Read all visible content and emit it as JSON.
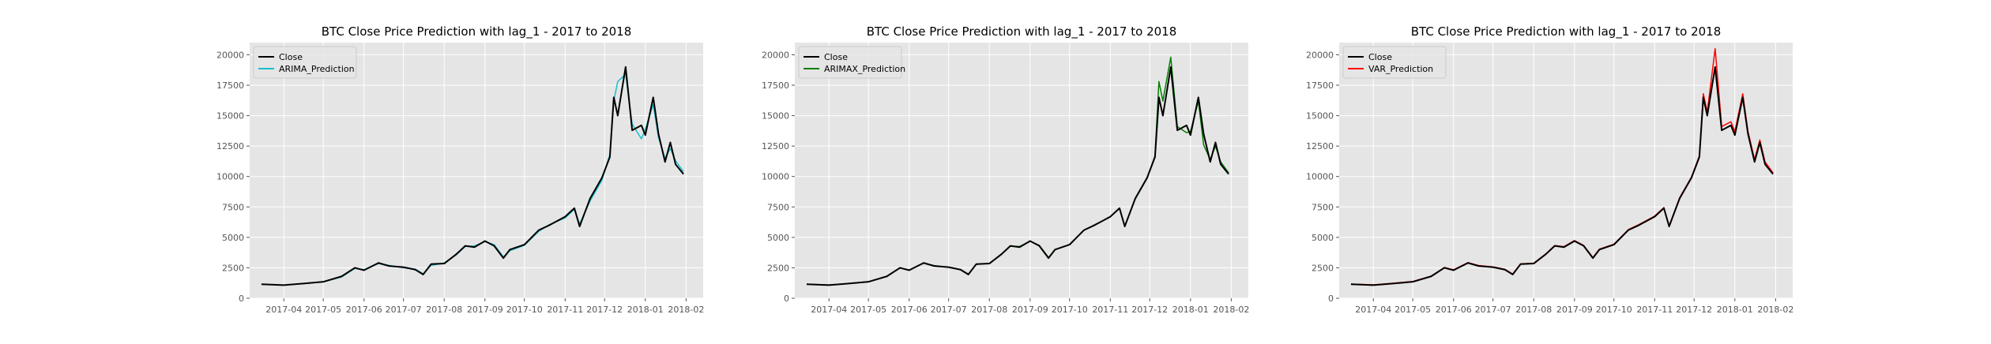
{
  "chart_data": [
    {
      "type": "line",
      "title": "BTC Close Price Prediction with lag_1 - 2017 to 2018",
      "xlabel": "",
      "ylabel": "",
      "xlim": [
        "2017-03-06",
        "2018-02-14"
      ],
      "ylim": [
        0,
        21000
      ],
      "yticks": [
        0,
        2500,
        5000,
        7500,
        10000,
        12500,
        15000,
        17500,
        20000
      ],
      "ytick_labels": [
        "0",
        "2500",
        "5000",
        "7500",
        "10000",
        "12500",
        "15000",
        "17500",
        "20000"
      ],
      "xticks": [
        "2017-04-01",
        "2017-05-01",
        "2017-06-01",
        "2017-07-01",
        "2017-08-01",
        "2017-09-01",
        "2017-10-01",
        "2017-11-01",
        "2017-12-01",
        "2018-01-01",
        "2018-02-01"
      ],
      "xtick_labels": [
        "2017-04",
        "2017-05",
        "2017-06",
        "2017-07",
        "2017-08",
        "2017-09",
        "2017-10",
        "2017-11",
        "2017-12",
        "2018-01",
        "2018-02"
      ],
      "grid": true,
      "legend_position": "top-left",
      "x": [
        "2017-03-15",
        "2017-04-01",
        "2017-04-15",
        "2017-05-01",
        "2017-05-15",
        "2017-05-25",
        "2017-06-01",
        "2017-06-12",
        "2017-06-20",
        "2017-07-01",
        "2017-07-10",
        "2017-07-16",
        "2017-07-22",
        "2017-08-01",
        "2017-08-10",
        "2017-08-17",
        "2017-08-24",
        "2017-09-01",
        "2017-09-08",
        "2017-09-15",
        "2017-09-20",
        "2017-10-01",
        "2017-10-12",
        "2017-10-20",
        "2017-11-01",
        "2017-11-08",
        "2017-11-12",
        "2017-11-20",
        "2017-11-29",
        "2017-12-05",
        "2017-12-08",
        "2017-12-11",
        "2017-12-17",
        "2017-12-22",
        "2017-12-29",
        "2018-01-01",
        "2018-01-07",
        "2018-01-11",
        "2018-01-16",
        "2018-01-20",
        "2018-01-24",
        "2018-01-30"
      ],
      "series": [
        {
          "name": "Close",
          "color": "#000000",
          "values": [
            1150,
            1080,
            1200,
            1350,
            1800,
            2500,
            2300,
            2900,
            2650,
            2550,
            2350,
            1950,
            2800,
            2850,
            3600,
            4300,
            4200,
            4700,
            4300,
            3300,
            4000,
            4400,
            5600,
            6000,
            6700,
            7400,
            5900,
            8200,
            9900,
            11600,
            16500,
            15000,
            19000,
            13800,
            14200,
            13400,
            16500,
            13500,
            11200,
            12800,
            11000,
            10200
          ]
        },
        {
          "name": "ARIMA_Prediction",
          "color": "#17becf",
          "values": [
            1140,
            1070,
            1190,
            1340,
            1750,
            2450,
            2350,
            2850,
            2700,
            2500,
            2400,
            2000,
            2700,
            2900,
            3550,
            4250,
            4300,
            4650,
            4400,
            3400,
            3900,
            4350,
            5500,
            6050,
            6600,
            7300,
            6100,
            8000,
            9700,
            11800,
            16200,
            17800,
            18400,
            14300,
            13100,
            13900,
            15900,
            13200,
            11500,
            12300,
            11300,
            10400
          ]
        }
      ]
    },
    {
      "type": "line",
      "title": "BTC Close Price Prediction with lag_1 - 2017 to 2018",
      "xlabel": "",
      "ylabel": "",
      "xlim": [
        "2017-03-06",
        "2018-02-14"
      ],
      "ylim": [
        0,
        21000
      ],
      "yticks": [
        0,
        2500,
        5000,
        7500,
        10000,
        12500,
        15000,
        17500,
        20000
      ],
      "ytick_labels": [
        "0",
        "2500",
        "5000",
        "7500",
        "10000",
        "12500",
        "15000",
        "17500",
        "20000"
      ],
      "xticks": [
        "2017-04-01",
        "2017-05-01",
        "2017-06-01",
        "2017-07-01",
        "2017-08-01",
        "2017-09-01",
        "2017-10-01",
        "2017-11-01",
        "2017-12-01",
        "2018-01-01",
        "2018-02-01"
      ],
      "xtick_labels": [
        "2017-04",
        "2017-05",
        "2017-06",
        "2017-07",
        "2017-08",
        "2017-09",
        "2017-10",
        "2017-11",
        "2017-12",
        "2018-01",
        "2018-02"
      ],
      "grid": true,
      "legend_position": "top-left",
      "x": [
        "2017-03-15",
        "2017-04-01",
        "2017-04-15",
        "2017-05-01",
        "2017-05-15",
        "2017-05-25",
        "2017-06-01",
        "2017-06-12",
        "2017-06-20",
        "2017-07-01",
        "2017-07-10",
        "2017-07-16",
        "2017-07-22",
        "2017-08-01",
        "2017-08-10",
        "2017-08-17",
        "2017-08-24",
        "2017-09-01",
        "2017-09-08",
        "2017-09-15",
        "2017-09-20",
        "2017-10-01",
        "2017-10-12",
        "2017-10-20",
        "2017-11-01",
        "2017-11-08",
        "2017-11-12",
        "2017-11-20",
        "2017-11-29",
        "2017-12-05",
        "2017-12-08",
        "2017-12-11",
        "2017-12-17",
        "2017-12-22",
        "2017-12-29",
        "2018-01-01",
        "2018-01-07",
        "2018-01-11",
        "2018-01-16",
        "2018-01-20",
        "2018-01-24",
        "2018-01-30"
      ],
      "series": [
        {
          "name": "Close",
          "color": "#000000",
          "values": [
            1150,
            1080,
            1200,
            1350,
            1800,
            2500,
            2300,
            2900,
            2650,
            2550,
            2350,
            1950,
            2800,
            2850,
            3600,
            4300,
            4200,
            4700,
            4300,
            3300,
            4000,
            4400,
            5600,
            6000,
            6700,
            7400,
            5900,
            8200,
            9900,
            11600,
            16500,
            15000,
            19000,
            13800,
            14200,
            13400,
            16500,
            13500,
            11200,
            12800,
            11000,
            10200
          ]
        },
        {
          "name": "ARIMAX_Prediction",
          "color": "#008000",
          "values": [
            1160,
            1090,
            1210,
            1360,
            1790,
            2480,
            2320,
            2880,
            2680,
            2540,
            2370,
            1980,
            2780,
            2870,
            3580,
            4280,
            4250,
            4680,
            4350,
            3350,
            3980,
            4420,
            5580,
            6030,
            6680,
            7380,
            5950,
            8150,
            9850,
            11700,
            17800,
            16200,
            19800,
            14100,
            13600,
            13700,
            16200,
            12600,
            11400,
            12500,
            11200,
            10300
          ]
        }
      ]
    },
    {
      "type": "line",
      "title": "BTC Close Price Prediction with lag_1 - 2017 to 2018",
      "xlabel": "",
      "ylabel": "",
      "xlim": [
        "2017-03-06",
        "2018-02-14"
      ],
      "ylim": [
        0,
        21000
      ],
      "yticks": [
        0,
        2500,
        5000,
        7500,
        10000,
        12500,
        15000,
        17500,
        20000
      ],
      "ytick_labels": [
        "0",
        "2500",
        "5000",
        "7500",
        "10000",
        "12500",
        "15000",
        "17500",
        "20000"
      ],
      "xticks": [
        "2017-04-01",
        "2017-05-01",
        "2017-06-01",
        "2017-07-01",
        "2017-08-01",
        "2017-09-01",
        "2017-10-01",
        "2017-11-01",
        "2017-12-01",
        "2018-01-01",
        "2018-02-01"
      ],
      "xtick_labels": [
        "2017-04",
        "2017-05",
        "2017-06",
        "2017-07",
        "2017-08",
        "2017-09",
        "2017-10",
        "2017-11",
        "2017-12",
        "2018-01",
        "2018-02"
      ],
      "grid": true,
      "legend_position": "top-left",
      "x": [
        "2017-03-15",
        "2017-04-01",
        "2017-04-15",
        "2017-05-01",
        "2017-05-15",
        "2017-05-25",
        "2017-06-01",
        "2017-06-12",
        "2017-06-20",
        "2017-07-01",
        "2017-07-10",
        "2017-07-16",
        "2017-07-22",
        "2017-08-01",
        "2017-08-10",
        "2017-08-17",
        "2017-08-24",
        "2017-09-01",
        "2017-09-08",
        "2017-09-15",
        "2017-09-20",
        "2017-10-01",
        "2017-10-12",
        "2017-10-20",
        "2017-11-01",
        "2017-11-08",
        "2017-11-12",
        "2017-11-20",
        "2017-11-29",
        "2017-12-05",
        "2017-12-08",
        "2017-12-11",
        "2017-12-17",
        "2017-12-22",
        "2017-12-29",
        "2018-01-01",
        "2018-01-07",
        "2018-01-11",
        "2018-01-16",
        "2018-01-20",
        "2018-01-24",
        "2018-01-30"
      ],
      "series": [
        {
          "name": "Close",
          "color": "#000000",
          "values": [
            1150,
            1080,
            1200,
            1350,
            1800,
            2500,
            2300,
            2900,
            2650,
            2550,
            2350,
            1950,
            2800,
            2850,
            3600,
            4300,
            4200,
            4700,
            4300,
            3300,
            4000,
            4400,
            5600,
            6000,
            6700,
            7400,
            5900,
            8200,
            9900,
            11600,
            16500,
            15000,
            19000,
            13800,
            14200,
            13400,
            16500,
            13500,
            11200,
            12800,
            11000,
            10200
          ]
        },
        {
          "name": "VAR_Prediction",
          "color": "#ff0000",
          "values": [
            1170,
            1100,
            1220,
            1380,
            1820,
            2530,
            2340,
            2930,
            2690,
            2580,
            2380,
            1990,
            2830,
            2880,
            3630,
            4330,
            4240,
            4740,
            4340,
            3340,
            4040,
            4440,
            5640,
            6050,
            6750,
            7450,
            5950,
            8260,
            9960,
            11700,
            16800,
            15300,
            20500,
            14100,
            14500,
            13700,
            16800,
            13700,
            11400,
            13000,
            11200,
            10300
          ]
        }
      ]
    }
  ]
}
